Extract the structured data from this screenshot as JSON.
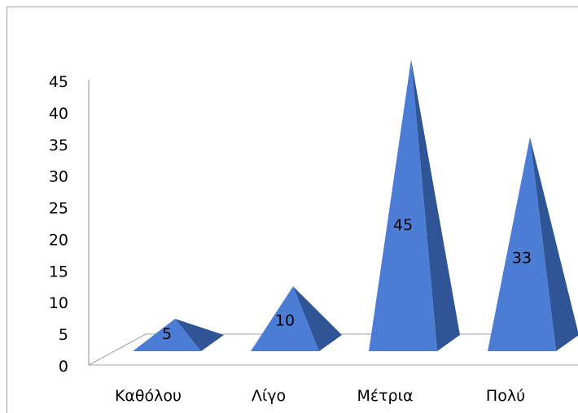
{
  "chart_data": {
    "type": "bar",
    "shape": "3d-pyramid",
    "categories": [
      "Καθόλου",
      "Λίγο",
      "Μέτρια",
      "Πολύ"
    ],
    "values": [
      5,
      10,
      45,
      33
    ],
    "data_labels": [
      "5",
      "10",
      "45",
      "33"
    ],
    "ylim": [
      0,
      45
    ],
    "yticks": [
      "0",
      "5",
      "10",
      "15",
      "20",
      "25",
      "30",
      "35",
      "40",
      "45"
    ],
    "grid": false,
    "legend": "none",
    "colors": {
      "front": "#4a7dd3",
      "side": "#2f5597",
      "axis": "#8c8c8c",
      "frame": "#a0a0a0"
    }
  }
}
